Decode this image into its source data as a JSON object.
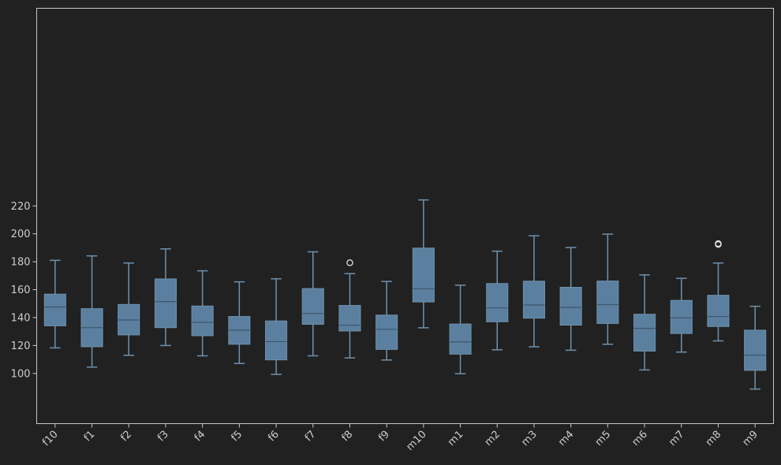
{
  "chart_data": {
    "type": "box",
    "title": "",
    "xlabel": "",
    "ylabel": "",
    "ylim": [
      82,
      232
    ],
    "yticks": [
      100,
      120,
      140,
      160,
      180,
      200,
      220
    ],
    "grid": false,
    "colors": {
      "background": "#212121",
      "box": "#5b7f9f",
      "line": "#6e91ad",
      "median": "#3d566b",
      "axis": "#c8c8c8",
      "text": "#cccccc",
      "outlier": "#e6e6e6"
    },
    "categories": [
      "f10",
      "f1",
      "f2",
      "f3",
      "f4",
      "f5",
      "f6",
      "f7",
      "f8",
      "f9",
      "m10",
      "m1",
      "m2",
      "m3",
      "m4",
      "m5",
      "m6",
      "m7",
      "m8",
      "m9"
    ],
    "boxes": [
      {
        "whislo": 118.3,
        "q1": 134.1,
        "med": 147.6,
        "q3": 156.8,
        "whishi": 181.0,
        "fliers": []
      },
      {
        "whislo": 104.5,
        "q1": 119.1,
        "med": 132.8,
        "q3": 146.4,
        "whishi": 184.2,
        "fliers": []
      },
      {
        "whislo": 113.0,
        "q1": 127.6,
        "med": 138.3,
        "q3": 149.4,
        "whishi": 179.1,
        "fliers": []
      },
      {
        "whislo": 120.0,
        "q1": 132.8,
        "med": 151.4,
        "q3": 167.7,
        "whishi": 189.2,
        "fliers": []
      },
      {
        "whislo": 112.6,
        "q1": 127.0,
        "med": 136.6,
        "q3": 148.3,
        "whishi": 173.5,
        "fliers": []
      },
      {
        "whislo": 107.1,
        "q1": 120.9,
        "med": 131.0,
        "q3": 140.8,
        "whishi": 165.6,
        "fliers": []
      },
      {
        "whislo": 99.3,
        "q1": 109.7,
        "med": 122.8,
        "q3": 137.6,
        "whishi": 167.8,
        "fliers": []
      },
      {
        "whislo": 112.6,
        "q1": 135.2,
        "med": 142.9,
        "q3": 160.8,
        "whishi": 187.1,
        "fliers": []
      },
      {
        "whislo": 111.1,
        "q1": 130.4,
        "med": 134.5,
        "q3": 148.7,
        "whishi": 171.5,
        "fliers": [
          179.3
        ]
      },
      {
        "whislo": 109.6,
        "q1": 117.2,
        "med": 131.6,
        "q3": 141.8,
        "whishi": 165.9,
        "fliers": []
      },
      {
        "whislo": 132.7,
        "q1": 151.2,
        "med": 160.7,
        "q3": 189.8,
        "whishi": 224.3,
        "fliers": []
      },
      {
        "whislo": 99.8,
        "q1": 113.8,
        "med": 122.6,
        "q3": 135.4,
        "whishi": 163.2,
        "fliers": []
      },
      {
        "whislo": 116.9,
        "q1": 137.0,
        "med": 147.0,
        "q3": 164.4,
        "whishi": 187.6,
        "fliers": []
      },
      {
        "whislo": 119.1,
        "q1": 139.6,
        "med": 149.0,
        "q3": 166.1,
        "whishi": 198.6,
        "fliers": []
      },
      {
        "whislo": 116.6,
        "q1": 134.6,
        "med": 147.3,
        "q3": 161.7,
        "whishi": 190.2,
        "fliers": []
      },
      {
        "whislo": 120.9,
        "q1": 135.8,
        "med": 149.3,
        "q3": 166.2,
        "whishi": 199.8,
        "fliers": []
      },
      {
        "whislo": 102.5,
        "q1": 116.0,
        "med": 132.2,
        "q3": 142.4,
        "whishi": 170.6,
        "fliers": []
      },
      {
        "whislo": 115.3,
        "q1": 128.6,
        "med": 139.8,
        "q3": 152.3,
        "whishi": 168.1,
        "fliers": []
      },
      {
        "whislo": 123.3,
        "q1": 133.6,
        "med": 140.8,
        "q3": 156.0,
        "whishi": 179.1,
        "fliers": [
          192.4,
          193.0
        ]
      },
      {
        "whislo": 88.8,
        "q1": 102.2,
        "med": 113.0,
        "q3": 131.0,
        "whishi": 148.1,
        "fliers": []
      }
    ]
  }
}
